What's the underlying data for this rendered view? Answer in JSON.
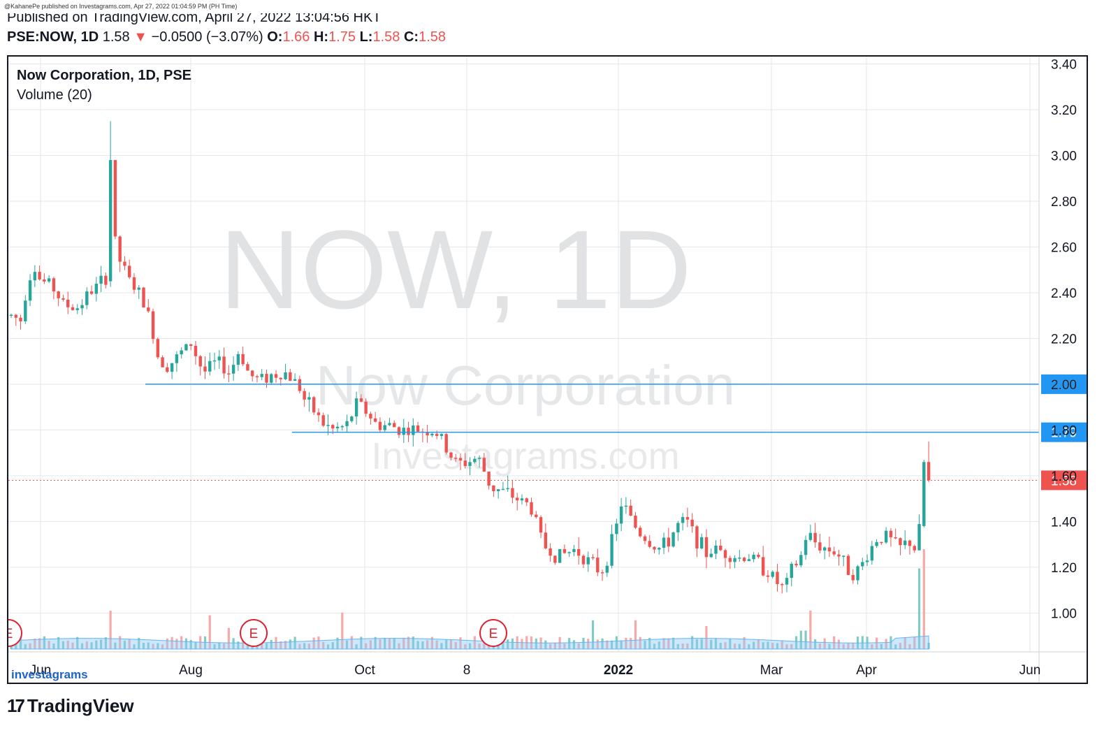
{
  "published": {
    "small_line": "@KahanePe published on Investagrams.com, Apr 27, 2022 01:04:59 PM (PH Time)",
    "large_line": "Published on TradingView.com, April 27, 2022 13:04:56 HKT"
  },
  "header": {
    "symbol": "PSE:NOW, 1D",
    "price": "1.58",
    "arrow": "▼",
    "change": "−0.0500 (−3.07%)",
    "o_label": "O:",
    "o_value": "1.66",
    "h_label": "H:",
    "h_value": "1.75",
    "l_label": "L:",
    "l_value": "1.58",
    "c_label": "C:",
    "c_value": "1.58"
  },
  "legend": {
    "title": "Now Corporation, 1D, PSE",
    "volume": "Volume (20)"
  },
  "watermark": {
    "line1": "NOW, 1D",
    "line2": "Now Corporation",
    "line3": "Investagrams.com"
  },
  "branding": {
    "investagrams": "investagrams",
    "tradingview": "TradingView",
    "tv_mark": "17"
  },
  "colors": {
    "up": "#26a69a",
    "down": "#ef5350",
    "level_line": "#2196f3",
    "last_price_line": "#ef5350",
    "grid": "#e6e6e6",
    "watermark": "#e1e2e4",
    "volume_ma": "#90caf9"
  },
  "chart_data": {
    "type": "candlestick",
    "title": "Now Corporation, 1D, PSE",
    "y_axis": {
      "ticks": [
        "3.40",
        "3.20",
        "3.00",
        "2.80",
        "2.60",
        "2.40",
        "2.20",
        "2.00",
        "1.80",
        "1.60",
        "1.40",
        "1.20",
        "1.00"
      ],
      "ylim": [
        0.83,
        3.42
      ]
    },
    "x_axis": {
      "ticks": [
        "Jun",
        "Aug",
        "Oct",
        "8",
        "2022",
        "Mar",
        "Apr",
        "Jun"
      ]
    },
    "horizontal_levels": [
      {
        "value": 2.0,
        "label": "2.00",
        "start_month": "Jul"
      },
      {
        "value": 1.79,
        "label": "1.79",
        "start_month": "Oct"
      }
    ],
    "last_price": {
      "value": 1.58,
      "label": "1.58"
    },
    "earnings_markers": [
      "E",
      "E",
      "E"
    ],
    "volume_label": "Volume (20)",
    "price_path": [
      [
        0,
        2.3
      ],
      [
        6,
        2.28
      ],
      [
        10,
        2.45
      ],
      [
        14,
        2.52
      ],
      [
        18,
        2.45
      ],
      [
        24,
        2.44
      ],
      [
        32,
        2.35
      ],
      [
        40,
        2.33
      ],
      [
        48,
        2.4
      ],
      [
        56,
        2.45
      ],
      [
        60,
        2.48
      ],
      [
        62,
        2.98
      ],
      [
        63,
        2.65
      ],
      [
        66,
        2.55
      ],
      [
        72,
        2.46
      ],
      [
        80,
        2.38
      ],
      [
        86,
        2.26
      ],
      [
        90,
        2.12
      ],
      [
        96,
        2.08
      ],
      [
        102,
        2.12
      ],
      [
        110,
        2.18
      ],
      [
        118,
        2.05
      ],
      [
        126,
        2.1
      ],
      [
        134,
        2.05
      ],
      [
        140,
        2.15
      ],
      [
        146,
        2.04
      ],
      [
        152,
        2.02
      ],
      [
        160,
        2.04
      ],
      [
        168,
        2.05
      ],
      [
        176,
        2.0
      ],
      [
        180,
        1.93
      ],
      [
        186,
        1.88
      ],
      [
        192,
        1.82
      ],
      [
        198,
        1.8
      ],
      [
        206,
        1.82
      ],
      [
        212,
        1.92
      ],
      [
        218,
        1.88
      ],
      [
        224,
        1.82
      ],
      [
        232,
        1.82
      ],
      [
        240,
        1.8
      ],
      [
        248,
        1.8
      ],
      [
        256,
        1.8
      ],
      [
        262,
        1.78
      ],
      [
        268,
        1.7
      ],
      [
        274,
        1.65
      ],
      [
        280,
        1.66
      ],
      [
        286,
        1.68
      ],
      [
        290,
        1.62
      ],
      [
        294,
        1.55
      ],
      [
        302,
        1.53
      ],
      [
        310,
        1.5
      ],
      [
        318,
        1.47
      ],
      [
        322,
        1.4
      ],
      [
        326,
        1.3
      ],
      [
        334,
        1.25
      ],
      [
        340,
        1.26
      ],
      [
        346,
        1.28
      ],
      [
        352,
        1.24
      ],
      [
        358,
        1.2
      ],
      [
        362,
        1.18
      ],
      [
        368,
        1.3
      ],
      [
        372,
        1.4
      ],
      [
        374,
        1.48
      ],
      [
        378,
        1.44
      ],
      [
        384,
        1.36
      ],
      [
        390,
        1.32
      ],
      [
        396,
        1.28
      ],
      [
        402,
        1.3
      ],
      [
        408,
        1.38
      ],
      [
        414,
        1.4
      ],
      [
        420,
        1.33
      ],
      [
        426,
        1.26
      ],
      [
        432,
        1.28
      ],
      [
        440,
        1.26
      ],
      [
        446,
        1.24
      ],
      [
        452,
        1.25
      ],
      [
        458,
        1.22
      ],
      [
        464,
        1.18
      ],
      [
        470,
        1.13
      ],
      [
        474,
        1.1
      ],
      [
        478,
        1.18
      ],
      [
        484,
        1.24
      ],
      [
        488,
        1.35
      ],
      [
        494,
        1.3
      ],
      [
        500,
        1.28
      ],
      [
        506,
        1.27
      ],
      [
        512,
        1.2
      ],
      [
        518,
        1.17
      ],
      [
        524,
        1.24
      ],
      [
        530,
        1.32
      ],
      [
        536,
        1.34
      ],
      [
        542,
        1.3
      ],
      [
        546,
        1.28
      ],
      [
        550,
        1.32
      ],
      [
        554,
        1.28
      ],
      [
        558,
        1.4
      ],
      [
        560,
        1.66
      ],
      [
        562,
        1.58
      ]
    ],
    "volume_spikes": [
      {
        "t": 62,
        "v": 1.0
      },
      {
        "t": 121,
        "v": 0.88
      },
      {
        "t": 134,
        "v": 0.55
      },
      {
        "t": 203,
        "v": 0.95
      },
      {
        "t": 324,
        "v": 0.3
      },
      {
        "t": 358,
        "v": 0.75,
        "up": true
      },
      {
        "t": 384,
        "v": 0.75
      },
      {
        "t": 426,
        "v": 0.6
      },
      {
        "t": 484,
        "v": 0.48,
        "up": true
      },
      {
        "t": 487,
        "v": 0.48,
        "up": true
      },
      {
        "t": 490,
        "v": 1.0
      },
      {
        "t": 556,
        "v": 1.2,
        "up": true
      },
      {
        "t": 558,
        "v": 2.1,
        "up": true
      },
      {
        "t": 561,
        "v": 2.6
      }
    ]
  }
}
